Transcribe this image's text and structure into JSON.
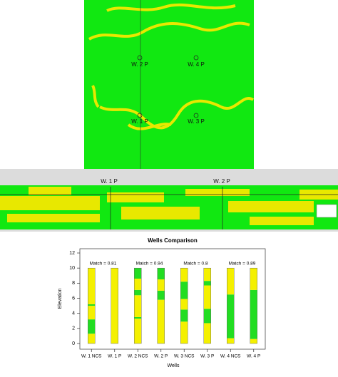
{
  "map": {
    "labels": [
      "W. 2 P",
      "W. 4 P",
      "W. 1 P",
      "W. 3 P"
    ]
  },
  "section": {
    "labels": [
      "W. 1 P",
      "W. 2 P"
    ]
  },
  "chart_data": {
    "type": "stacked-bar",
    "title": "Wells Comparison",
    "x_label": "Wells",
    "y_label": "Elevation",
    "categories": [
      "W. 1 NCS",
      "W. 1 P",
      "W. 2 NCS",
      "W. 2 P",
      "W. 3 NCS",
      "W. 3 P",
      "W. 4 NCS",
      "W. 4 P"
    ],
    "segments": [
      [
        1.3,
        1.9,
        1.8,
        0.2,
        4.8
      ],
      [
        10
      ],
      [
        3.3,
        0.2,
        2.9,
        0.7,
        1.5,
        1.4
      ],
      [
        5.8,
        1.2,
        1.5,
        1.5
      ],
      [
        2.9,
        1.6,
        1.4,
        2.3,
        1.8
      ],
      [
        2.7,
        1.9,
        3.1,
        0.6,
        1.7
      ],
      [
        0.7,
        5.8,
        3.5
      ],
      [
        0.6,
        6.5,
        2.9
      ]
    ],
    "colors": [
      "#f4f000",
      "#22dd22"
    ],
    "annotations": [
      "Match = 0.81",
      "Match = 0.94",
      "Match = 0.8",
      "Match = 0.89"
    ],
    "ylim": [
      0,
      12
    ],
    "yticks": [
      0,
      2,
      4,
      6,
      8,
      10,
      12
    ]
  }
}
